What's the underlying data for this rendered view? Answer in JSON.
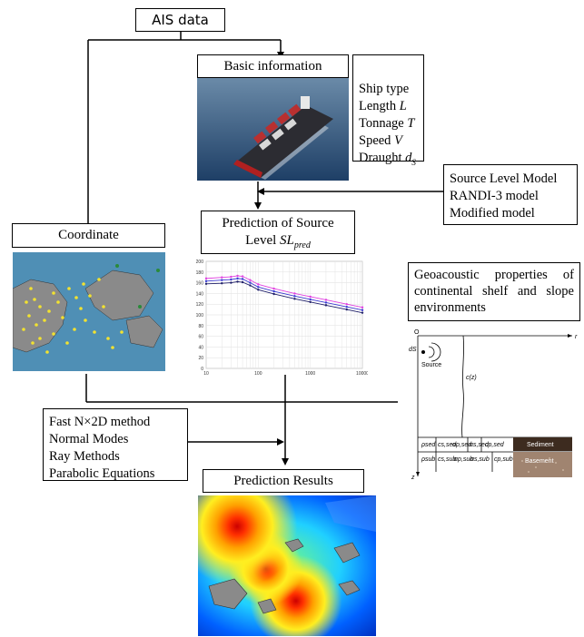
{
  "boxes": {
    "ais": "AIS data",
    "basic": "Basic information",
    "ship_props": [
      "Ship type",
      "Length L",
      "Tonnage T",
      "Speed V",
      "Draught dS"
    ],
    "sl_models": [
      "Source Level Model",
      "RANDI-3 model",
      "Modified model"
    ],
    "coordinate": "Coordinate",
    "prediction_sl_line1": "Prediction of Source",
    "prediction_sl_line2": "Level SLpred",
    "geo": "Geoacoustic properties of continental shelf and slope environments",
    "methods": [
      "Fast N×2D method",
      "Normal Modes",
      "Ray Methods",
      "Parabolic Equations"
    ],
    "results": "Prediction Results"
  },
  "chart_data": {
    "type": "line",
    "x": [
      10,
      20,
      30,
      40,
      50,
      70,
      100,
      200,
      500,
      1000,
      2000,
      5000,
      10000
    ],
    "xscale": "log",
    "xlim": [
      10,
      10000
    ],
    "ylim": [
      0,
      200
    ],
    "yticks": [
      0,
      20,
      40,
      60,
      80,
      100,
      120,
      140,
      160,
      180,
      200
    ],
    "xticks": [
      "10",
      "100",
      "1000",
      "10000"
    ],
    "grid": true,
    "series": [
      {
        "color": "#e040e0",
        "values": [
          168,
          170,
          171,
          173,
          172,
          165,
          157,
          149,
          140,
          134,
          128,
          120,
          114
        ]
      },
      {
        "color": "#3a3ad0",
        "values": [
          163,
          165,
          166,
          168,
          167,
          160,
          152,
          144,
          135,
          129,
          123,
          115,
          109
        ]
      },
      {
        "color": "#20206a",
        "values": [
          158,
          159,
          160,
          162,
          161,
          155,
          147,
          139,
          130,
          124,
          118,
          110,
          104
        ]
      }
    ]
  },
  "geo_diagram": {
    "axis_r": "r",
    "axis_z": "z",
    "origin": "O",
    "ds": "dS",
    "source": "Source",
    "cz": "c(z)",
    "sediment": "Sediment",
    "basement": "Basement",
    "sed_params": [
      "ρsed",
      "cs,sed",
      "αp,sed",
      "αs,sed",
      "cp,sed"
    ],
    "bas_params": [
      "ρsub",
      "cs,sub",
      "αp,sub",
      "αs,sub",
      "cp,sub"
    ]
  },
  "colors": {
    "line": "#000000",
    "sediment": "#3d2b1f",
    "basement": "#a08470"
  }
}
